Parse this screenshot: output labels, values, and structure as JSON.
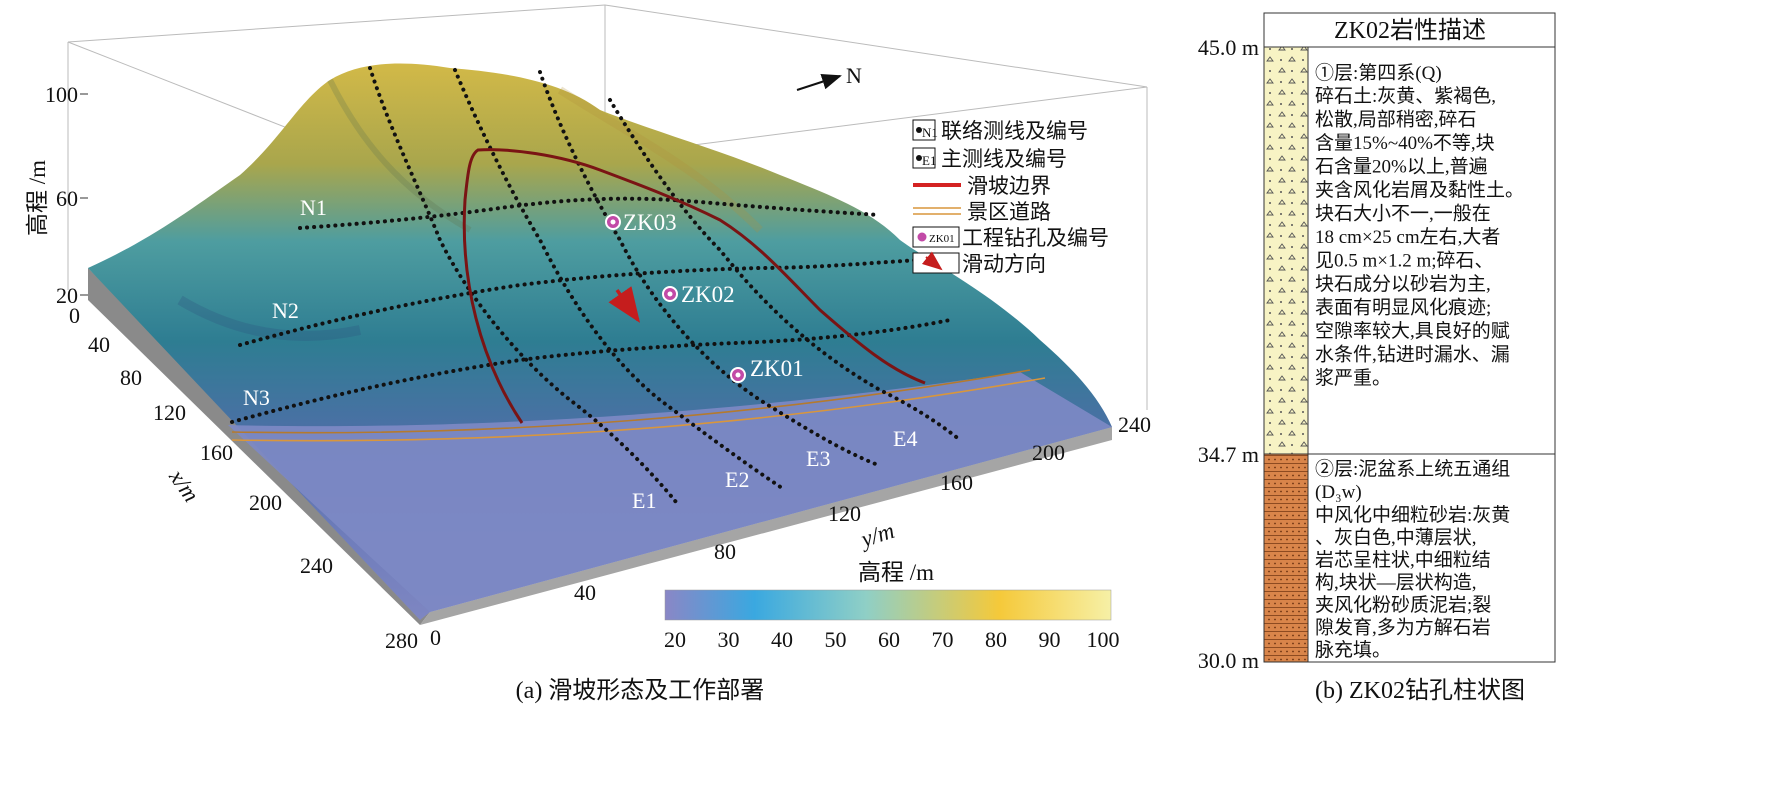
{
  "panel_a": {
    "caption": "(a) 滑坡形态及工作部署",
    "north_label": "N",
    "z_axis": {
      "label": "高程 /m",
      "ticks": [
        "20",
        "60",
        "100"
      ]
    },
    "x_axis": {
      "label": "x/m",
      "ticks": [
        "0",
        "40",
        "80",
        "120",
        "160",
        "200",
        "240",
        "280"
      ]
    },
    "y_axis": {
      "label": "y/m",
      "ticks": [
        "0",
        "40",
        "80",
        "120",
        "160",
        "200",
        "240"
      ]
    },
    "survey_lines_n": [
      "N1",
      "N2",
      "N3"
    ],
    "survey_lines_e": [
      "E1",
      "E2",
      "E3",
      "E4"
    ],
    "boreholes": [
      "ZK01",
      "ZK02",
      "ZK03"
    ],
    "legend": [
      {
        "symbol": "N1",
        "label": "联络测线及编号"
      },
      {
        "symbol": "E1",
        "label": "主测线及编号"
      },
      {
        "symbol": "",
        "label": "滑坡边界"
      },
      {
        "symbol": "",
        "label": "景区道路"
      },
      {
        "symbol": "ZK01",
        "label": "工程钻孔及编号"
      },
      {
        "symbol": "",
        "label": "滑动方向"
      }
    ],
    "colorbar": {
      "title": "高程 /m",
      "ticks": [
        "20",
        "30",
        "40",
        "50",
        "60",
        "70",
        "80",
        "90",
        "100"
      ],
      "colors": [
        "#8a87c6",
        "#3aa8e0",
        "#7fc8c4",
        "#f5c93a",
        "#f6f0a6"
      ]
    }
  },
  "panel_b": {
    "caption": "(b) ZK02钻孔柱状图",
    "title": "ZK02岩性描述",
    "depth_labels": [
      "45.0 m",
      "34.7 m",
      "30.0 m"
    ],
    "layer1": {
      "head": "①层:第四系(Q)",
      "lines": [
        "碎石土:灰黄、紫褐色,",
        "松散,局部稍密,碎石",
        "含量15%~40%不等,块",
        "石含量20%以上,普遍",
        "夹含风化岩屑及黏性土。",
        "块石大小不一,一般在",
        "18 cm×25 cm左右,大者",
        "见0.5 m×1.2 m;碎石、",
        "块石成分以砂岩为主,",
        "表面有明显风化痕迹;",
        "空隙率较大,具良好的赋",
        "水条件,钻进时漏水、漏",
        "浆严重。"
      ]
    },
    "layer2": {
      "head": "②层:泥盆系上统五通组",
      "formation": "(D₃w)",
      "lines": [
        "中风化中细粒砂岩:灰黄",
        "、灰白色,中薄层状,",
        "岩芯呈柱状,中细粒结",
        "构,块状—层状构造,",
        "夹风化粉砂质泥岩;裂",
        "隙发育,多为方解石岩",
        "脉充填。"
      ]
    }
  }
}
